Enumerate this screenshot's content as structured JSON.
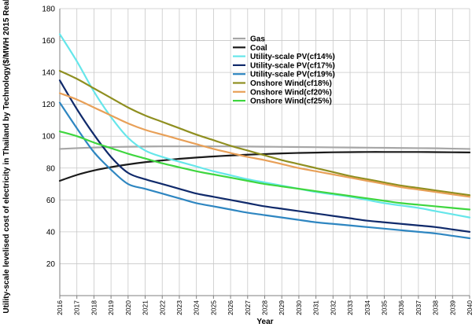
{
  "chart_data": {
    "type": "line",
    "xlabel": "Year",
    "ylabel": "Utility-scale levelised cost of electricity in Thailand by Technology($/MWH 2015 Real)",
    "ylim": [
      0,
      180
    ],
    "xlim": [
      2016,
      2040
    ],
    "yticks": [
      20,
      40,
      60,
      80,
      100,
      120,
      140,
      160,
      180
    ],
    "xticks": [
      2016,
      2017,
      2018,
      2019,
      2020,
      2021,
      2022,
      2023,
      2024,
      2025,
      2026,
      2027,
      2028,
      2029,
      2030,
      2031,
      2032,
      2033,
      2034,
      2035,
      2036,
      2037,
      2038,
      2039,
      2040
    ],
    "grid": true,
    "legend_position": "top-right",
    "x": [
      2016,
      2017,
      2018,
      2019,
      2020,
      2021,
      2022,
      2023,
      2024,
      2025,
      2026,
      2027,
      2028,
      2029,
      2030,
      2031,
      2032,
      2033,
      2034,
      2035,
      2036,
      2037,
      2038,
      2039,
      2040
    ],
    "series": [
      {
        "name": "Gas",
        "color": "#a6a6a6",
        "values": [
          92,
          92.5,
          92.9,
          93.2,
          93.4,
          93.5,
          93.6,
          93.6,
          93.6,
          93.6,
          93.6,
          93.5,
          93.4,
          93.3,
          93.2,
          93.1,
          93.0,
          92.9,
          92.8,
          92.7,
          92.6,
          92.5,
          92.4,
          92.2,
          92.0
        ]
      },
      {
        "name": "Coal",
        "color": "#1a1a1a",
        "values": [
          72,
          75.7,
          78.5,
          80.6,
          82.3,
          83.7,
          84.8,
          85.8,
          86.6,
          87.3,
          87.9,
          88.4,
          88.8,
          89.2,
          89.5,
          89.7,
          89.9,
          90.0,
          90.1,
          90.1,
          90.1,
          90.1,
          90.0,
          89.9,
          89.8
        ]
      },
      {
        "name": "Utility-scale PV(cf14%)",
        "color": "#66e6ea",
        "values": [
          164,
          147,
          128,
          112,
          99,
          91,
          87,
          84,
          81,
          78,
          75.5,
          73,
          71,
          69,
          67,
          65,
          63.5,
          62,
          60,
          58,
          56.5,
          55,
          53,
          51,
          49
        ]
      },
      {
        "name": "Utility-scale PV(cf17%)",
        "color": "#102a6b",
        "values": [
          135,
          117,
          101,
          87,
          77,
          73,
          70,
          67,
          64,
          62,
          60,
          58,
          56,
          54.5,
          53,
          51.5,
          50,
          48.5,
          47,
          46,
          45,
          44,
          43,
          41.5,
          40
        ]
      },
      {
        "name": "Utility-scale PV(cf19%)",
        "color": "#2e86c1",
        "values": [
          121,
          105,
          90,
          79,
          70,
          67,
          64,
          61,
          58,
          56,
          54,
          52,
          50.5,
          49,
          47.5,
          46,
          45,
          44,
          43,
          42,
          41,
          40,
          39,
          37.5,
          36
        ]
      },
      {
        "name": "Onshore Wind(cf18%)",
        "color": "#8f8f20",
        "values": [
          141,
          136,
          130,
          124,
          118,
          113,
          109,
          105,
          101,
          97.5,
          94,
          91,
          88,
          85,
          82.5,
          80,
          77.5,
          75,
          73,
          71,
          69,
          67.5,
          66,
          64.5,
          63
        ]
      },
      {
        "name": "Onshore Wind(cf20%)",
        "color": "#e8a058",
        "values": [
          127,
          123,
          118,
          113,
          108,
          104,
          101,
          98,
          95,
          92,
          89.5,
          87,
          85,
          82.5,
          80,
          78,
          76,
          74,
          72,
          70,
          68,
          66.5,
          65,
          63.5,
          62
        ]
      },
      {
        "name": "Onshore Wind(cf25%)",
        "color": "#3fd63f",
        "values": [
          103,
          100,
          96,
          92.5,
          89,
          86,
          83,
          80.5,
          78,
          76,
          74,
          72,
          70,
          68.5,
          67,
          65.5,
          64,
          62.5,
          61,
          59.5,
          58,
          57,
          56,
          55,
          54
        ]
      }
    ]
  }
}
